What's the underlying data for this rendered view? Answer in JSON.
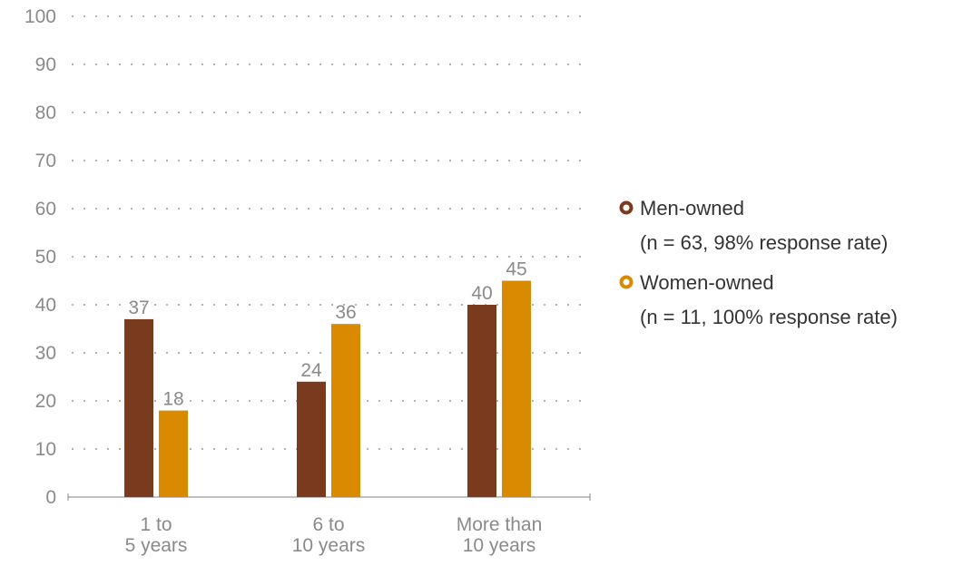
{
  "chart_data": {
    "type": "bar",
    "title": "",
    "xlabel": "",
    "ylabel": "",
    "ylim": [
      0,
      100
    ],
    "yticks": [
      0,
      10,
      20,
      30,
      40,
      50,
      60,
      70,
      80,
      90,
      100
    ],
    "grid": true,
    "legend_position": "right",
    "categories": [
      [
        "1 to",
        "5 years"
      ],
      [
        "6 to",
        "10 years"
      ],
      [
        "More than",
        "10 years"
      ]
    ],
    "series": [
      {
        "name": "Men-owned",
        "note": "(n = 63, 98% response rate)",
        "color": "#7a3a1e",
        "values": [
          37,
          24,
          40
        ]
      },
      {
        "name": "Women-owned",
        "note": "(n = 11, 100% response rate)",
        "color": "#d98a00",
        "values": [
          18,
          36,
          45
        ]
      }
    ]
  }
}
